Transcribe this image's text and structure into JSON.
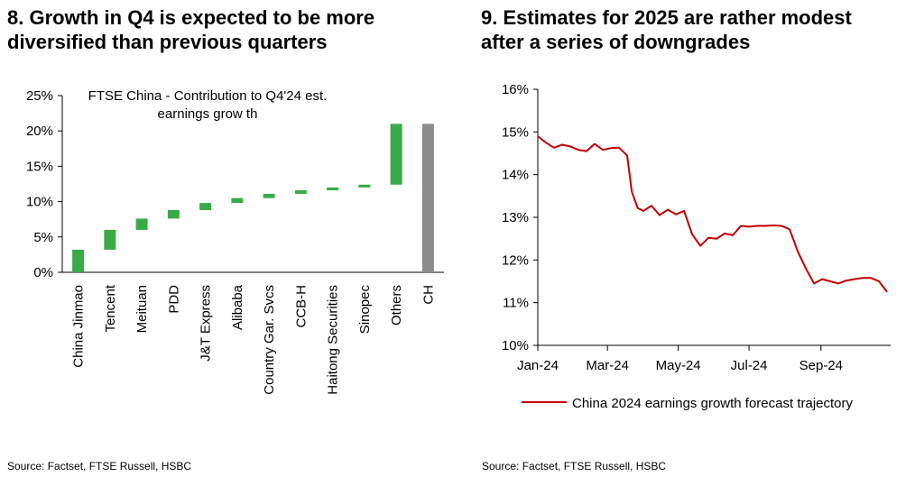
{
  "charts": {
    "left": {
      "title": "8. Growth in Q4 is expected to be more\ndiversified than previous quarters",
      "source": "Source: Factset, FTSE Russell, HSBC"
    },
    "right": {
      "title": "9. Estimates for 2025 are rather modest\nafter a series of downgrades",
      "source": "Source: Factset, FTSE Russell, HSBC"
    }
  },
  "chart_data": [
    {
      "type": "bar",
      "subtype": "waterfall",
      "annotation": [
        "FTSE China - Contribution to Q4'24 est.",
        "earnings grow th"
      ],
      "categories": [
        "China Jinmao",
        "Tencent",
        "Meituan",
        "PDD",
        "J&T Express",
        "Alibaba",
        "Country Gar. Svcs",
        "CCB-H",
        "Haitong Securities",
        "Sinopec",
        "Others",
        "CH"
      ],
      "values": [
        3.2,
        2.8,
        1.6,
        1.2,
        1.0,
        0.7,
        0.6,
        0.5,
        0.4,
        0.4,
        8.6,
        21.0
      ],
      "bar_colors": [
        "#3aaa49",
        "#3aaa49",
        "#3aaa49",
        "#3aaa49",
        "#3aaa49",
        "#3aaa49",
        "#3aaa49",
        "#3aaa49",
        "#3aaa49",
        "#3aaa49",
        "#3aaa49",
        "#8c8c8c"
      ],
      "total_category": "CH",
      "yticks": [
        "0%",
        "5%",
        "10%",
        "15%",
        "20%",
        "25%"
      ],
      "ylim": [
        0,
        25
      ],
      "grid": false,
      "legend": "none"
    },
    {
      "type": "line",
      "x_start": "2024-01-01",
      "x_end": "2024-10-31",
      "xticks": [
        "Jan-24",
        "Mar-24",
        "May-24",
        "Jul-24",
        "Sep-24"
      ],
      "yticks": [
        "10%",
        "11%",
        "12%",
        "13%",
        "14%",
        "15%",
        "16%"
      ],
      "ylim": [
        10,
        16
      ],
      "grid": false,
      "legend": "bottom",
      "series": [
        {
          "name": "China 2024 earnings growth forecast trajectory",
          "color": "#c00000",
          "x": [
            "2024-01-01",
            "2024-01-08",
            "2024-01-15",
            "2024-01-22",
            "2024-01-29",
            "2024-02-05",
            "2024-02-12",
            "2024-02-19",
            "2024-02-26",
            "2024-03-04",
            "2024-03-11",
            "2024-03-18",
            "2024-03-22",
            "2024-03-27",
            "2024-04-01",
            "2024-04-08",
            "2024-04-15",
            "2024-04-22",
            "2024-04-29",
            "2024-05-06",
            "2024-05-13",
            "2024-05-20",
            "2024-05-27",
            "2024-06-03",
            "2024-06-10",
            "2024-06-17",
            "2024-06-24",
            "2024-07-01",
            "2024-07-08",
            "2024-07-15",
            "2024-07-22",
            "2024-07-29",
            "2024-08-05",
            "2024-08-12",
            "2024-08-19",
            "2024-08-26",
            "2024-09-02",
            "2024-09-09",
            "2024-09-16",
            "2024-09-23",
            "2024-09-30",
            "2024-10-07",
            "2024-10-14",
            "2024-10-21",
            "2024-10-28"
          ],
          "y": [
            14.9,
            14.75,
            14.63,
            14.7,
            14.66,
            14.58,
            14.55,
            14.72,
            14.58,
            14.62,
            14.63,
            14.45,
            13.6,
            13.22,
            13.15,
            13.27,
            13.05,
            13.18,
            13.07,
            13.15,
            12.6,
            12.33,
            12.52,
            12.5,
            12.62,
            12.58,
            12.8,
            12.78,
            12.8,
            12.8,
            12.81,
            12.8,
            12.72,
            12.2,
            11.8,
            11.45,
            11.55,
            11.5,
            11.45,
            11.52,
            11.55,
            11.58,
            11.58,
            11.5,
            11.25
          ]
        }
      ]
    }
  ]
}
